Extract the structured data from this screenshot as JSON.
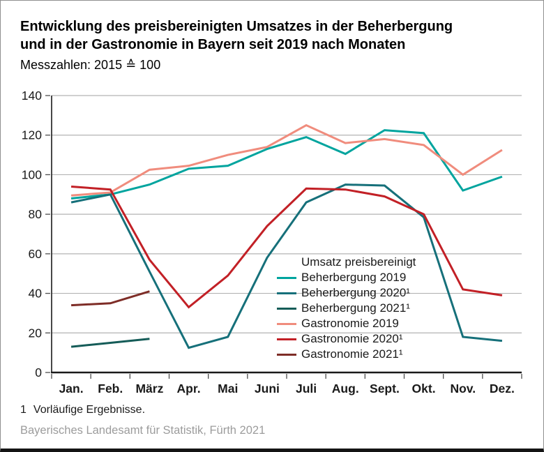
{
  "header": {
    "title_line1": "Entwicklung des preisbereinigten Umsatzes in der Beherbergung",
    "title_line2": "und in der Gastronomie in Bayern seit 2019 nach Monaten",
    "subtitle": "Messzahlen: 2015 ≙ 100"
  },
  "chart_data": {
    "type": "line",
    "categories": [
      "Jan.",
      "Feb.",
      "März",
      "Apr.",
      "Mai",
      "Juni",
      "Juli",
      "Aug.",
      "Sept.",
      "Okt.",
      "Nov.",
      "Dez."
    ],
    "ylim": [
      0,
      140
    ],
    "ytick_step": 20,
    "ytick_labels": [
      "0",
      "20",
      "40",
      "60",
      "80",
      "100",
      "120",
      "140"
    ],
    "grid": "horizontal",
    "legend_title": "Umsatz preisbereinigt",
    "legend_position": "inside-center-right",
    "xlabel": "",
    "ylabel": "",
    "series": [
      {
        "name": "Beherbergung 2019",
        "color": "#00a49e",
        "values": [
          88,
          90,
          95,
          103,
          104.5,
          113,
          119,
          110.5,
          122.5,
          121,
          92,
          99
        ]
      },
      {
        "name": "Beherbergung 2020¹",
        "color": "#16707a",
        "values": [
          86,
          90,
          51,
          12.5,
          18,
          58,
          86,
          95,
          94.5,
          78.5,
          18,
          16
        ]
      },
      {
        "name": "Beherbergung 2021¹",
        "color": "#155c58",
        "values": [
          13,
          15,
          17,
          null,
          null,
          null,
          null,
          null,
          null,
          null,
          null,
          null
        ]
      },
      {
        "name": "Gastronomie 2019",
        "color": "#f08c7d",
        "values": [
          89.5,
          91,
          102.5,
          104.5,
          110,
          114,
          125,
          116,
          118,
          115,
          100,
          112.5
        ]
      },
      {
        "name": "Gastronomie 2020¹",
        "color": "#c22026",
        "values": [
          94,
          92.5,
          57,
          33,
          49,
          74,
          93,
          92.5,
          89,
          80,
          42,
          39
        ]
      },
      {
        "name": "Gastronomie 2021¹",
        "color": "#7e2d27",
        "values": [
          34,
          35,
          41,
          null,
          null,
          null,
          null,
          null,
          null,
          null,
          null,
          null
        ]
      }
    ]
  },
  "footer": {
    "footnote_marker": "1",
    "footnote_text": "Vorläufige Ergebnisse.",
    "source": "Bayerisches Landesamt für Statistik, Fürth 2021"
  },
  "style": {
    "axis_color": "#1a1a1a",
    "grid_color": "#b3b3b3",
    "tick_color": "#4d4d4d",
    "label_color": "#1a1a1a"
  }
}
